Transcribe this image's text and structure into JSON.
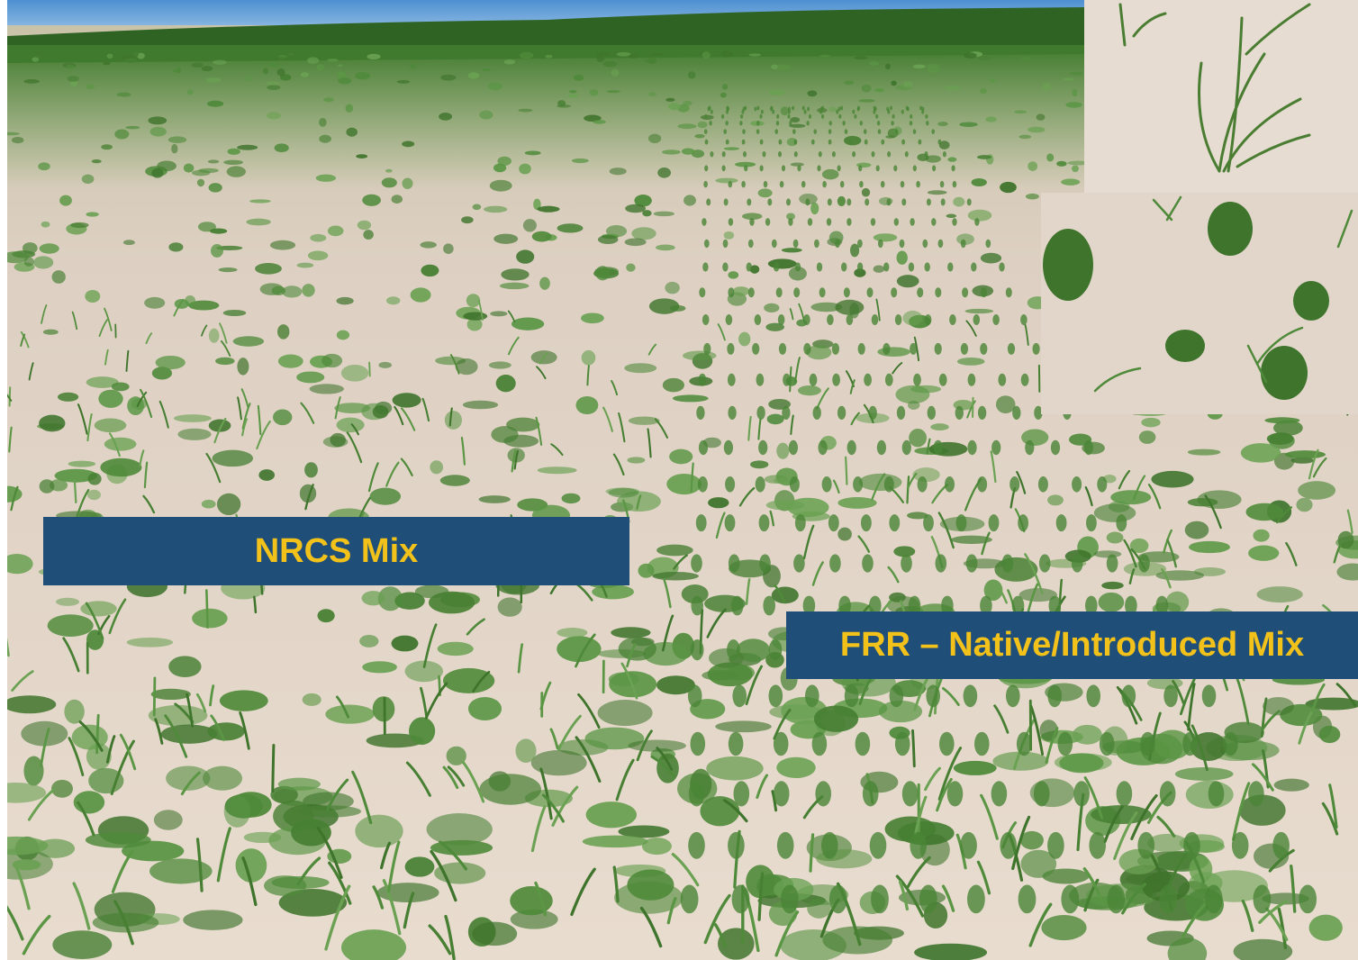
{
  "labels": {
    "left": "NRCS Mix",
    "right": "FRR – Native/Introduced Mix"
  },
  "colors": {
    "banner_bg": "#1f4e79",
    "banner_text": "#f2c21b",
    "sky": "#6aa3d8",
    "soil": "#e3d4c6",
    "vegetation": "#4f8a3a"
  }
}
